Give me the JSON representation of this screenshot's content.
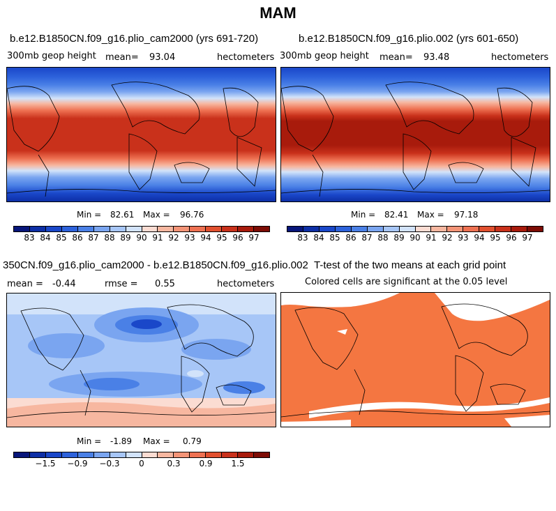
{
  "season": "MAM",
  "panels": {
    "top_left": {
      "title": "b.e12.B1850CN.f09_g16.plio_cam2000 (yrs 691-720)",
      "variable": "300mb geop height",
      "mean_label": "mean=",
      "mean_value": "93.04",
      "units": "hectometers",
      "min_label": "Min =",
      "min_value": "82.61",
      "max_label": "Max =",
      "max_value": "96.76"
    },
    "top_right": {
      "title": "b.e12.B1850CN.f09_g16.plio.002 (yrs 601-650)",
      "variable": "300mb geop height",
      "mean_label": "mean=",
      "mean_value": "93.48",
      "units": "hectometers",
      "min_label": "Min =",
      "min_value": "82.41",
      "max_label": "Max =",
      "max_value": "97.18"
    },
    "bottom_left": {
      "title": "350CN.f09_g16.plio_cam2000 - b.e12.B1850CN.f09_g16.plio.002",
      "mean_label": "mean =",
      "mean_value": "-0.44",
      "rmse_label": "rmse =",
      "rmse_value": "0.55",
      "units": "hectometers",
      "min_label": "Min =",
      "min_value": "-1.89",
      "max_label": "Max =",
      "max_value": "0.79"
    },
    "bottom_right": {
      "title": "T-test of the two means at each grid point",
      "subtitle": "Colored cells are significant at the 0.05 level"
    }
  },
  "colorbars": {
    "abs": {
      "colors": [
        "#08167a",
        "#0d2fa6",
        "#1a47c9",
        "#2d62db",
        "#4a80e6",
        "#7aa5f0",
        "#a7c6f7",
        "#d2e3fa",
        "#fbdcd2",
        "#f7b7a0",
        "#f39477",
        "#ee7152",
        "#e1502f",
        "#c9311b",
        "#a81b0c",
        "#7d0c05"
      ],
      "labels": [
        "83",
        "84",
        "85",
        "86",
        "87",
        "88",
        "89",
        "90",
        "91",
        "92",
        "93",
        "94",
        "95",
        "96",
        "97"
      ]
    },
    "diff": {
      "colors": [
        "#08167a",
        "#0d2fa6",
        "#1a47c9",
        "#2d62db",
        "#4a80e6",
        "#7aa5f0",
        "#a7c6f7",
        "#d2e3fa",
        "#fbdcd2",
        "#f7b7a0",
        "#f39477",
        "#ee7152",
        "#e1502f",
        "#c9311b",
        "#a81b0c",
        "#7d0c05"
      ],
      "labels": [
        "-1.5",
        "-0.9",
        "-0.3",
        "0",
        "0.3",
        "0.9",
        "1.5"
      ]
    }
  },
  "colors": {
    "ttest_fill": "#f47641",
    "coast": "#000000"
  }
}
